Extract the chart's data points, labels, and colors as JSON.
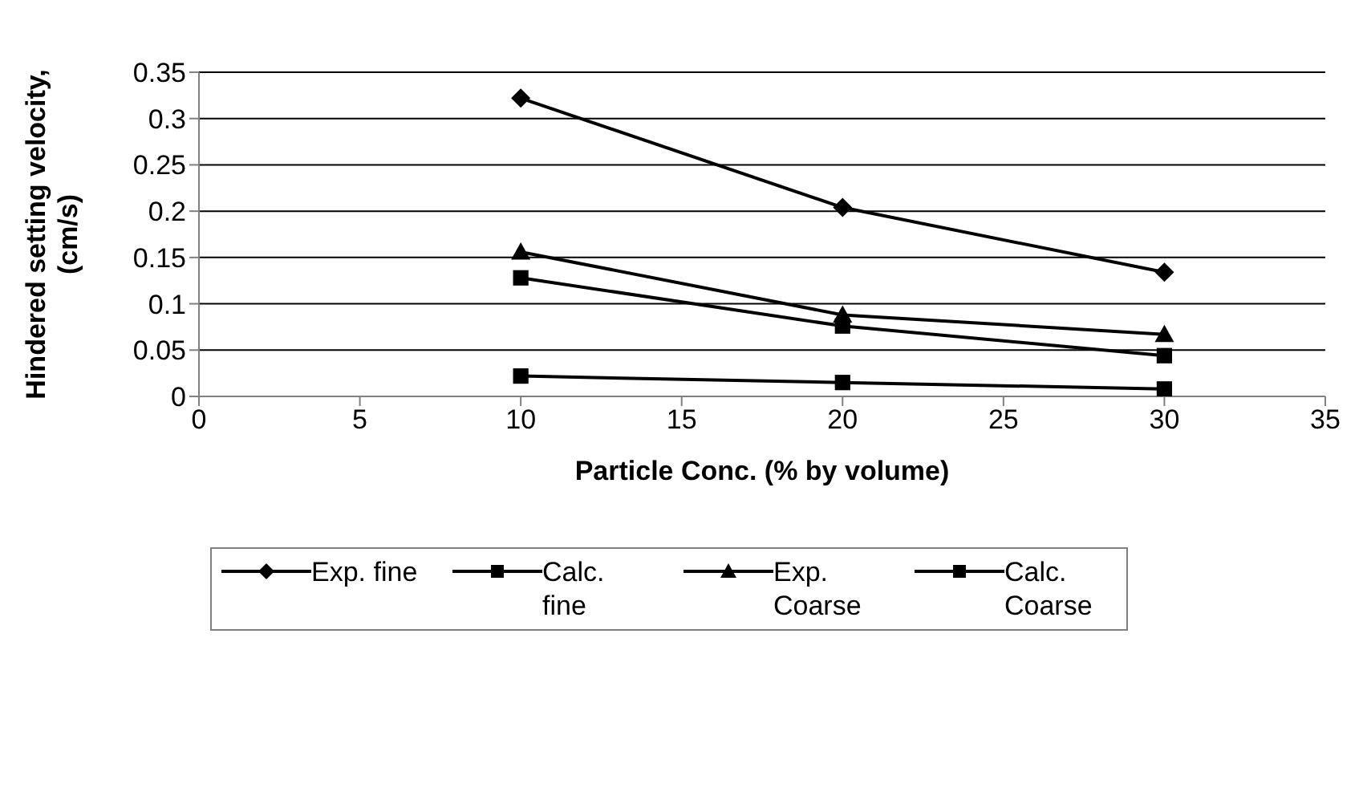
{
  "chart_data": {
    "type": "line",
    "xlabel": "Particle Conc. (% by volume)",
    "ylabel": "Hindered setting velocity, (cm/s)",
    "x": [
      10,
      20,
      30
    ],
    "series": [
      {
        "name": "Exp. fine",
        "color": "#000000",
        "marker": "diamond",
        "values": [
          0.322,
          0.204,
          0.134
        ]
      },
      {
        "name": "Calc. fine",
        "color": "#000000",
        "marker": "square",
        "values": [
          0.128,
          0.076,
          0.044
        ]
      },
      {
        "name": "Exp. Coarse",
        "color": "#000000",
        "marker": "triangle",
        "values": [
          0.156,
          0.088,
          0.067
        ]
      },
      {
        "name": "Calc. Coarse",
        "color": "#000000",
        "marker": "square",
        "values": [
          0.022,
          0.015,
          0.008
        ]
      }
    ],
    "xlim": [
      0,
      35
    ],
    "xticks": [
      0,
      5,
      10,
      15,
      20,
      25,
      30,
      35
    ],
    "ylim": [
      0,
      0.35
    ],
    "yticks": [
      0,
      0.05,
      0.1,
      0.15,
      0.2,
      0.25,
      0.3,
      0.35
    ],
    "grid": "y",
    "legend": "bottom"
  }
}
